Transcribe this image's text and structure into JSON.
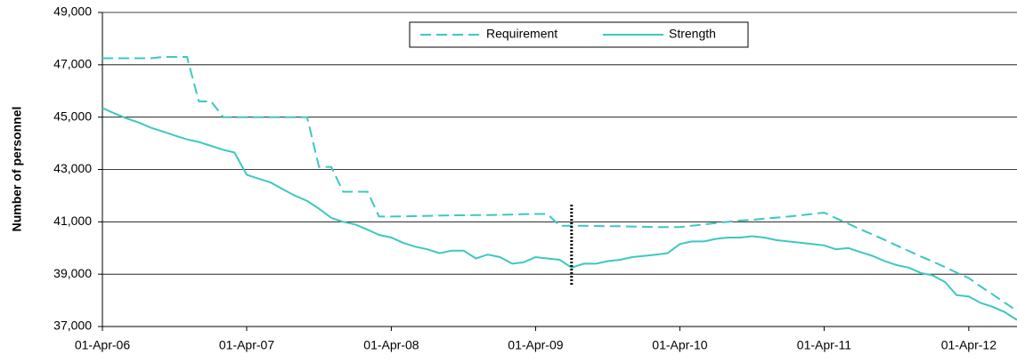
{
  "chart_data": {
    "type": "line",
    "y_label": "Number of personnel",
    "x": [
      "2006-04-01",
      "2006-05-01",
      "2006-06-01",
      "2006-07-01",
      "2006-08-01",
      "2006-09-01",
      "2006-10-01",
      "2006-11-01",
      "2006-12-01",
      "2007-01-01",
      "2007-02-01",
      "2007-03-01",
      "2007-04-01",
      "2007-05-01",
      "2007-06-01",
      "2007-07-01",
      "2007-08-01",
      "2007-09-01",
      "2007-10-01",
      "2007-11-01",
      "2007-12-01",
      "2008-01-01",
      "2008-02-01",
      "2008-03-01",
      "2008-04-01",
      "2008-05-01",
      "2008-06-01",
      "2008-07-01",
      "2008-08-01",
      "2008-09-01",
      "2008-10-01",
      "2008-11-01",
      "2008-12-01",
      "2009-01-01",
      "2009-02-01",
      "2009-03-01",
      "2009-04-01",
      "2009-05-01",
      "2009-06-01",
      "2009-07-01",
      "2009-08-01",
      "2009-09-01",
      "2009-10-01",
      "2009-11-01",
      "2009-12-01",
      "2010-01-01",
      "2010-02-01",
      "2010-03-01",
      "2010-04-01",
      "2010-05-01",
      "2010-06-01",
      "2010-07-01",
      "2010-08-01",
      "2010-09-01",
      "2010-10-01",
      "2010-11-01",
      "2010-12-01",
      "2011-01-01",
      "2011-02-01",
      "2011-03-01",
      "2011-04-01",
      "2011-05-01",
      "2011-06-01",
      "2011-07-01",
      "2011-08-01",
      "2011-09-01",
      "2011-10-01",
      "2011-11-01",
      "2011-12-01",
      "2012-01-01",
      "2012-02-01",
      "2012-03-01",
      "2012-04-01",
      "2012-05-01",
      "2012-06-01",
      "2012-07-01",
      "2012-08-01"
    ],
    "series": [
      {
        "name": "Requirement",
        "color": "#3cc8c0",
        "dashed": true,
        "values": [
          47250,
          47250,
          47250,
          47250,
          47250,
          47300,
          47300,
          47300,
          45600,
          45600,
          45000,
          45000,
          45000,
          45000,
          45000,
          45000,
          45000,
          45000,
          43100,
          43100,
          42150,
          42150,
          42150,
          41200,
          41200,
          41210,
          41220,
          41230,
          41240,
          41250,
          41250,
          41260,
          41260,
          41270,
          41280,
          41290,
          41300,
          41300,
          40850,
          40850,
          40850,
          40840,
          40830,
          40830,
          40820,
          40810,
          40800,
          40800,
          40800,
          40850,
          40900,
          40950,
          41000,
          41050,
          41080,
          41120,
          41160,
          41200,
          41250,
          41300,
          41350,
          41140,
          40930,
          40720,
          40520,
          40310,
          40100,
          39890,
          39680,
          39480,
          39270,
          39060,
          38850,
          38530,
          38220,
          37910,
          37600
        ]
      },
      {
        "name": "Strength",
        "color": "#3cc8c0",
        "dashed": false,
        "values": [
          45350,
          45150,
          44950,
          44800,
          44600,
          44450,
          44300,
          44150,
          44050,
          43900,
          43750,
          43650,
          42800,
          42650,
          42500,
          42250,
          42000,
          41800,
          41500,
          41150,
          41000,
          40900,
          40700,
          40500,
          40400,
          40200,
          40050,
          39950,
          39800,
          39900,
          39900,
          39600,
          39750,
          39650,
          39400,
          39450,
          39650,
          39600,
          39550,
          39250,
          39400,
          39400,
          39500,
          39550,
          39650,
          39700,
          39750,
          39800,
          40150,
          40250,
          40250,
          40350,
          40400,
          40400,
          40450,
          40400,
          40300,
          40250,
          40200,
          40150,
          40100,
          39950,
          40000,
          39850,
          39700,
          39500,
          39350,
          39250,
          39050,
          38950,
          38700,
          38200,
          38150,
          37900,
          37750,
          37550,
          37250
        ]
      }
    ],
    "xlim": [
      "2006-04-01",
      "2012-08-01"
    ],
    "xticks": [
      {
        "value": "2006-04-01",
        "label": "01-Apr-06"
      },
      {
        "value": "2007-04-01",
        "label": "01-Apr-07"
      },
      {
        "value": "2008-04-01",
        "label": "01-Apr-08"
      },
      {
        "value": "2009-04-01",
        "label": "01-Apr-09"
      },
      {
        "value": "2010-04-01",
        "label": "01-Apr-10"
      },
      {
        "value": "2011-04-01",
        "label": "01-Apr-11"
      },
      {
        "value": "2012-04-01",
        "label": "01-Apr-12"
      }
    ],
    "ylim": [
      37000,
      49000
    ],
    "yticks": [
      {
        "value": 37000,
        "label": "37,000"
      },
      {
        "value": 39000,
        "label": "39,000"
      },
      {
        "value": 41000,
        "label": "41,000"
      },
      {
        "value": 43000,
        "label": "43,000"
      },
      {
        "value": 45000,
        "label": "45,000"
      },
      {
        "value": 47000,
        "label": "47,000"
      },
      {
        "value": 49000,
        "label": "49,000"
      }
    ],
    "grid": true,
    "legend": "top",
    "reference_line": {
      "x": "2009-07-01"
    }
  }
}
